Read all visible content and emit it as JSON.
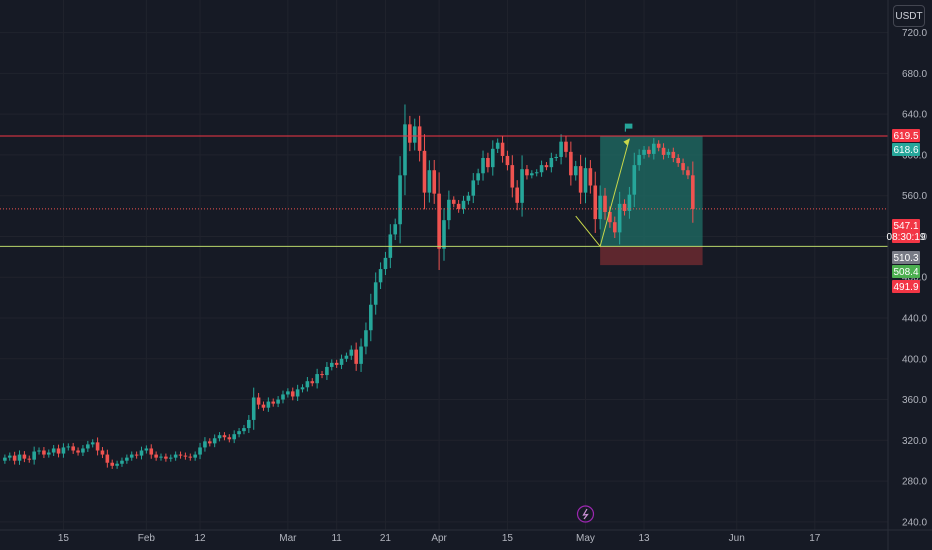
{
  "currency_label": "USDT",
  "colors": {
    "background": "#161a25",
    "up": "#26a69a",
    "down": "#ef5350",
    "grid": "#20232d",
    "resistance_line": "#f23645",
    "support_line": "#b8d66a",
    "target_zone": "#1f6f66",
    "stop_zone": "#6b2a30",
    "projection": "#c8d84a",
    "flag": "#26a69a"
  },
  "chart_data": {
    "type": "candlestick",
    "y_ticks": [
      "720.0",
      "680.0",
      "640.0",
      "600.0",
      "560.0",
      "520.0",
      "480.0",
      "440.0",
      "400.0",
      "360.0",
      "320.0",
      "280.0",
      "240.0"
    ],
    "y_tick_values": [
      720,
      680,
      640,
      600,
      560,
      520,
      480,
      440,
      400,
      360,
      320,
      280,
      240
    ],
    "ylim": [
      232,
      752
    ],
    "x_ticks": [
      "15",
      "Feb",
      "12",
      "Mar",
      "11",
      "21",
      "Apr",
      "15",
      "May",
      "13",
      "Jun",
      "17"
    ],
    "x_tick_days": [
      15,
      32,
      43,
      61,
      71,
      81,
      92,
      106,
      122,
      134,
      153,
      169
    ],
    "xlim": [
      2,
      184
    ],
    "x_unit": "day of year 2024",
    "grid": true,
    "close": [
      303,
      305,
      300,
      306,
      302,
      301,
      309,
      310,
      306,
      308,
      312,
      307,
      313,
      314,
      310,
      308,
      312,
      316,
      318,
      310,
      306,
      298,
      295,
      297,
      300,
      303,
      306,
      305,
      310,
      312,
      306,
      303,
      304,
      302,
      303,
      306,
      305,
      304,
      303,
      306,
      313,
      319,
      317,
      322,
      325,
      323,
      321,
      326,
      329,
      332,
      340,
      362,
      355,
      352,
      358,
      356,
      360,
      365,
      368,
      363,
      370,
      372,
      378,
      376,
      385,
      384,
      392,
      396,
      394,
      400,
      403,
      409,
      395,
      412,
      428,
      453,
      475,
      488,
      499,
      522,
      532,
      580,
      630,
      612,
      628,
      604,
      563,
      585,
      562,
      508,
      536,
      556,
      552,
      547,
      555,
      560,
      575,
      582,
      597,
      588,
      606,
      612,
      599,
      590,
      568,
      553,
      586,
      580,
      582,
      583,
      590,
      588,
      597,
      598,
      613,
      603,
      580,
      589,
      563,
      587,
      570,
      537,
      560,
      544,
      534,
      524,
      552,
      545,
      561,
      590,
      600,
      605,
      601,
      611,
      607,
      600,
      603,
      597,
      592,
      585,
      580,
      547
    ],
    "open": [
      300,
      303,
      305,
      300,
      306,
      302,
      301,
      309,
      310,
      306,
      308,
      312,
      307,
      313,
      314,
      310,
      308,
      312,
      316,
      318,
      310,
      306,
      298,
      295,
      297,
      300,
      303,
      306,
      305,
      310,
      312,
      306,
      303,
      304,
      302,
      303,
      306,
      305,
      304,
      303,
      306,
      313,
      319,
      317,
      322,
      325,
      323,
      321,
      326,
      329,
      332,
      340,
      362,
      355,
      352,
      358,
      356,
      360,
      365,
      368,
      363,
      370,
      372,
      378,
      376,
      385,
      384,
      392,
      396,
      394,
      400,
      403,
      409,
      395,
      412,
      428,
      453,
      475,
      488,
      499,
      522,
      532,
      580,
      630,
      612,
      628,
      604,
      563,
      585,
      562,
      508,
      536,
      556,
      552,
      547,
      555,
      560,
      575,
      582,
      597,
      588,
      606,
      612,
      599,
      590,
      568,
      553,
      586,
      580,
      582,
      583,
      590,
      588,
      597,
      598,
      613,
      603,
      580,
      589,
      563,
      587,
      570,
      537,
      560,
      544,
      534,
      524,
      552,
      545,
      561,
      590,
      600,
      605,
      601,
      611,
      607,
      600,
      603,
      597,
      592,
      585,
      580
    ],
    "price_levels": [
      {
        "label": "619.5",
        "value": 619.5,
        "color": "#f23645"
      },
      {
        "label": "618.6",
        "value": 618.6,
        "color": "#26a69a"
      },
      {
        "label": "547.1",
        "value": 547.1,
        "color": "#f23645",
        "countdown": "08:30:19"
      },
      {
        "label": "510.3",
        "value": 510.3,
        "color": "#787b86"
      },
      {
        "label": "508.4",
        "value": 508.4,
        "color": "#4caf50"
      },
      {
        "label": "491.9",
        "value": 491.9,
        "color": "#f23645"
      }
    ],
    "resistance": 618.6,
    "support": 510.3,
    "position": {
      "entry": 510.3,
      "target": 618.6,
      "stop": 491.9,
      "start_day": 125,
      "end_day": 146
    },
    "projection": [
      [
        120,
        540
      ],
      [
        125,
        510.3
      ],
      [
        131,
        616
      ]
    ]
  }
}
